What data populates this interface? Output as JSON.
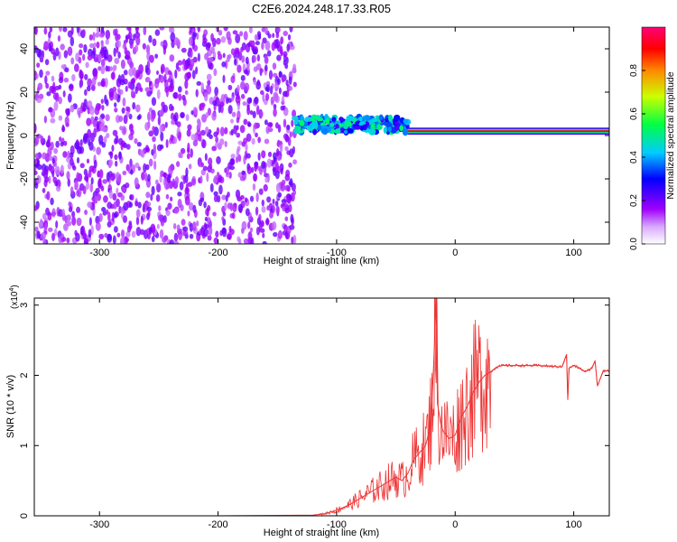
{
  "figure_title": "C2E6.2024.248.17.33.R05",
  "chart_data": [
    {
      "type": "heatmap",
      "title": "C2E6.2024.248.17.33.R05",
      "xlabel": "Height of straight line (km)",
      "ylabel": "Frequency (Hz)",
      "xlim": [
        -355,
        130
      ],
      "ylim": [
        -50,
        50
      ],
      "xticks": [
        -300,
        -200,
        -100,
        0,
        100
      ],
      "yticks": [
        -40,
        -20,
        0,
        20,
        40
      ],
      "colorbar": {
        "label": "Normalized spectral amplitude",
        "range": [
          0,
          1
        ],
        "ticks": [
          "0.0",
          "0.2",
          "0.4",
          "0.6",
          "0.8"
        ],
        "colormap": [
          "#ffffff",
          "#cc00ff",
          "#0000ff",
          "#00ffff",
          "#00ff00",
          "#ffff00",
          "#ff0000",
          "#ff0066"
        ]
      },
      "regions": [
        {
          "x_range": [
            -355,
            -135
          ],
          "freq_range": [
            -50,
            50
          ],
          "description": "broadband noise",
          "amplitude": 0.1
        },
        {
          "x_range": [
            -135,
            -40
          ],
          "freq_center": 5,
          "freq_width": 7,
          "amplitude": 0.35
        },
        {
          "x_range": [
            -40,
            130
          ],
          "freq_center": 2,
          "freq_width": 2,
          "amplitude": 0.9
        }
      ]
    },
    {
      "type": "line",
      "xlabel": "Height of straight line (km)",
      "ylabel": "SNR (10 * v/v)",
      "y_multiplier_label": "(x10",
      "y_multiplier_exp": "4",
      "y_multiplier_close": ")",
      "xlim": [
        -355,
        130
      ],
      "ylim": [
        0,
        3.1
      ],
      "xticks": [
        -300,
        -200,
        -100,
        0,
        100
      ],
      "yticks": [
        0,
        1,
        2,
        3
      ],
      "color": "#ee3333",
      "series": [
        {
          "x": [
            -355,
            -200,
            -120,
            -110,
            -100,
            -90,
            -80,
            -70,
            -60,
            -50,
            -45,
            -40,
            -35,
            -30,
            -25,
            -22,
            -20,
            -18,
            -16,
            -15,
            -12,
            -10,
            -5,
            0,
            5,
            10,
            15,
            20,
            25,
            30,
            35,
            40,
            50,
            60,
            70,
            80,
            90,
            94,
            95,
            96,
            100,
            105,
            110,
            115,
            118,
            120,
            125,
            130
          ],
          "y": [
            0.0,
            0.0,
            0.01,
            0.03,
            0.08,
            0.15,
            0.25,
            0.35,
            0.45,
            0.55,
            0.5,
            0.6,
            0.8,
            0.9,
            1.0,
            1.2,
            1.5,
            2.2,
            3.1,
            1.6,
            1.3,
            1.2,
            1.1,
            1.15,
            1.4,
            1.55,
            1.75,
            1.9,
            2.0,
            2.05,
            2.12,
            2.14,
            2.14,
            2.14,
            2.14,
            2.13,
            2.12,
            2.3,
            1.65,
            2.1,
            2.14,
            2.1,
            2.05,
            2.1,
            2.2,
            1.85,
            2.07,
            2.06
          ]
        }
      ]
    }
  ]
}
